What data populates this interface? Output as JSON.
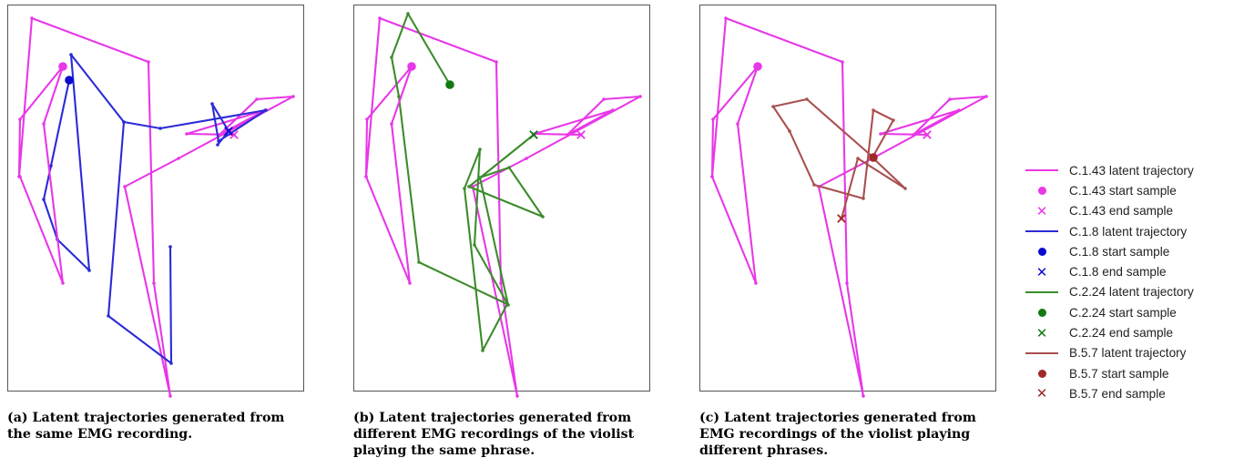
{
  "captions": [
    "(a) Latent trajectories generated from the same EMG recording.",
    "(b) Latent trajectories generated from different EMG recordings of the violist playing the same phrase.",
    "(c) Latent trajectories generated from EMG recordings of the violist playing different phrases."
  ],
  "legend": [
    {
      "label": "C.1.43 latent trajectory",
      "kind": "line",
      "color": "#e837e8"
    },
    {
      "label": "C.1.43 start sample",
      "kind": "dot",
      "color": "#e837e8"
    },
    {
      "label": "C.1.43 end sample",
      "kind": "x",
      "color": "#e837e8"
    },
    {
      "label": "C.1.8 latent trajectory",
      "kind": "line",
      "color": "#2b2bd6"
    },
    {
      "label": "C.1.8 start sample",
      "kind": "dot",
      "color": "#0b0bd0"
    },
    {
      "label": "C.1.8 end sample",
      "kind": "x",
      "color": "#0b0bd0"
    },
    {
      "label": "C.2.24 latent trajectory",
      "kind": "line",
      "color": "#3c8c2c"
    },
    {
      "label": "C.2.24 start sample",
      "kind": "dot",
      "color": "#117a11"
    },
    {
      "label": "C.2.24 end sample",
      "kind": "x",
      "color": "#117a11"
    },
    {
      "label": "B.5.7 latent trajectory",
      "kind": "line",
      "color": "#a8504e"
    },
    {
      "label": "B.5.7 start sample",
      "kind": "dot",
      "color": "#a02828"
    },
    {
      "label": "B.5.7 end sample",
      "kind": "x",
      "color": "#a02828"
    }
  ],
  "chart_data": [
    {
      "type": "line",
      "panel": "a",
      "axes": "off",
      "series": [
        {
          "name": "C.1.43",
          "color": "#e837e8",
          "x": [
            68,
            21,
            20,
            34,
            162,
            168,
            186,
            136,
            195,
            321,
            281,
            240,
            290,
            204,
            256
          ],
          "y": [
            72,
            130,
            193,
            19,
            67,
            310,
            434,
            204,
            173,
            105,
            108,
            147,
            120,
            146,
            147
          ]
        },
        {
          "name": "C.1.8",
          "color": "#2b2bd6",
          "x": [
            75,
            55,
            47,
            62,
            97,
            77,
            135,
            175,
            291,
            239,
            232,
            250,
            238,
            250
          ],
          "y": [
            87,
            181,
            218,
            262,
            296,
            59,
            133,
            140,
            120,
            154,
            113,
            143,
            158,
            143
          ]
        },
        {
          "name": "C.1.43",
          "color": "#e837e8",
          "x": [
            68,
            47,
            68,
            21
          ],
          "y": [
            72,
            135,
            310,
            193
          ]
        },
        {
          "name": "C.1.8",
          "color": "#2b2bd6",
          "x": [
            135,
            118,
            187,
            186
          ],
          "y": [
            133,
            346,
            398,
            270
          ]
        }
      ]
    },
    {
      "type": "line",
      "panel": "b",
      "axes": "off",
      "series": [
        {
          "name": "C.1.43",
          "color": "#e837e8",
          "x": [
            451,
            402,
            401,
            416,
            544,
            549,
            567,
            518,
            577,
            702,
            662,
            622,
            672,
            586,
            637
          ],
          "y": [
            72,
            130,
            193,
            19,
            67,
            310,
            434,
            204,
            173,
            105,
            108,
            147,
            120,
            146,
            147
          ]
        },
        {
          "name": "C.2.24",
          "color": "#3c8c2c",
          "x": [
            493,
            447,
            429,
            437,
            459,
            556,
            529,
            509,
            526,
            520,
            557,
            526,
            558,
            595,
            514,
            585
          ],
          "y": [
            92,
            14,
            62,
            105,
            287,
            333,
            384,
            206,
            163,
            268,
            334,
            194,
            183,
            237,
            204,
            147
          ]
        },
        {
          "name": "C.1.43",
          "color": "#e837e8",
          "x": [
            451,
            429,
            449,
            401
          ],
          "y": [
            72,
            135,
            310,
            193
          ]
        }
      ]
    },
    {
      "type": "line",
      "panel": "c",
      "axes": "off",
      "series": [
        {
          "name": "C.1.43",
          "color": "#e837e8",
          "x": [
            831,
            782,
            781,
            796,
            924,
            929,
            947,
            898,
            957,
            1082,
            1042,
            1002,
            1052,
            966,
            1017
          ],
          "y": [
            72,
            130,
            193,
            19,
            67,
            310,
            434,
            204,
            173,
            105,
            108,
            147,
            120,
            146,
            147
          ]
        },
        {
          "name": "B.5.7",
          "color": "#a8504e",
          "x": [
            958,
            885,
            848,
            866,
            893,
            947,
            958,
            980,
            957,
            993,
            941,
            923
          ],
          "y": [
            172,
            108,
            116,
            143,
            202,
            217,
            120,
            131,
            172,
            206,
            173,
            239
          ]
        },
        {
          "name": "C.1.43",
          "color": "#e837e8",
          "x": [
            831,
            809,
            829,
            781
          ],
          "y": [
            72,
            135,
            310,
            193
          ]
        }
      ]
    }
  ]
}
